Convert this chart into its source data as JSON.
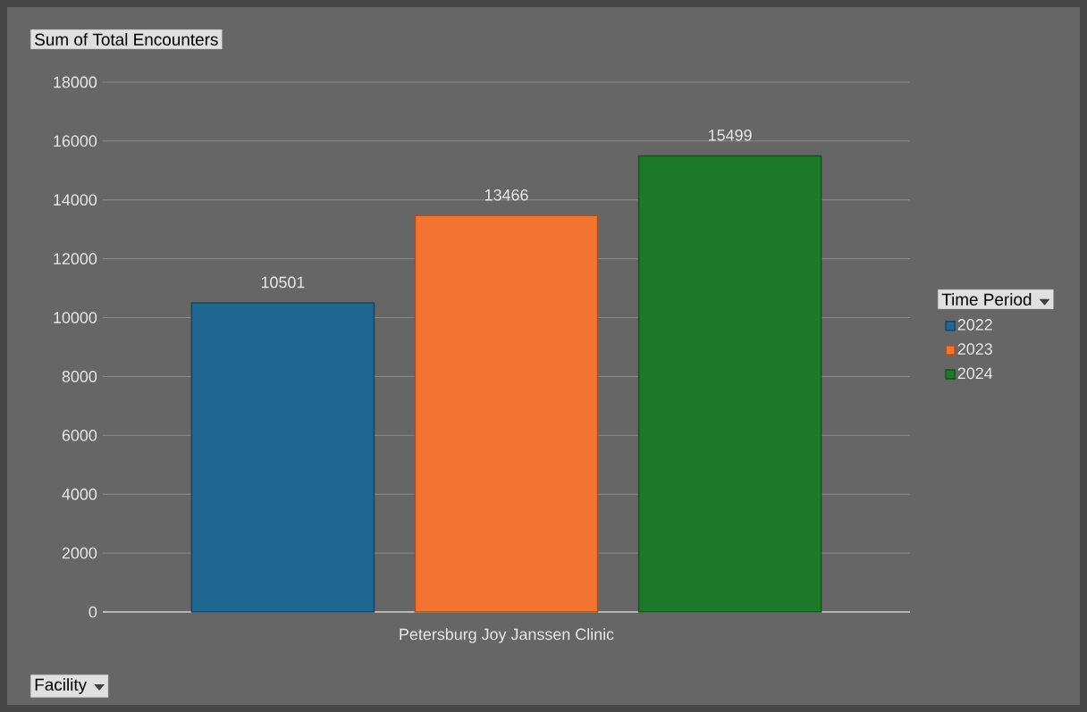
{
  "chart_data": {
    "type": "bar",
    "ylabel": "Sum of Total Encounters",
    "xlabel": "Facility",
    "legend_title": "Time Period",
    "categories": [
      "Petersburg Joy Janssen Clinic"
    ],
    "series": [
      {
        "name": "2022",
        "color": "#1f6690",
        "values": [
          10501
        ]
      },
      {
        "name": "2023",
        "color": "#f27430",
        "values": [
          13466
        ]
      },
      {
        "name": "2024",
        "color": "#1d7a2a",
        "values": [
          15499
        ]
      }
    ],
    "ylim": [
      0,
      18000
    ],
    "yticks": [
      0,
      2000,
      4000,
      6000,
      8000,
      10000,
      12000,
      14000,
      16000,
      18000
    ],
    "grid": "y",
    "legend": "right",
    "data_labels": true
  }
}
